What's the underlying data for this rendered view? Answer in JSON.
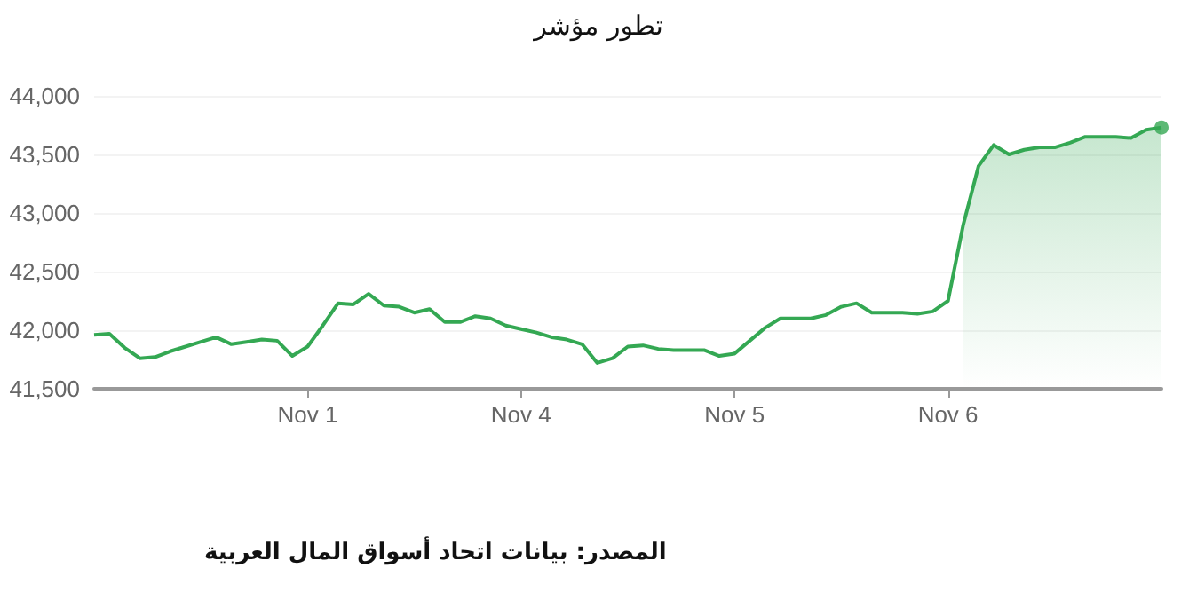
{
  "chart_data": {
    "type": "line",
    "title": "تطور مؤشر",
    "categories": [
      null,
      null,
      null,
      null,
      null,
      null,
      null,
      null,
      null,
      null,
      null,
      null,
      null,
      null,
      "Nov 1",
      null,
      null,
      null,
      null,
      null,
      null,
      null,
      null,
      null,
      null,
      null,
      null,
      null,
      "Nov 4",
      null,
      null,
      null,
      null,
      null,
      null,
      null,
      null,
      null,
      null,
      null,
      null,
      null,
      "Nov 5",
      null,
      null,
      null,
      null,
      null,
      null,
      null,
      null,
      null,
      null,
      null,
      null,
      null,
      "Nov 6",
      null,
      null,
      null,
      null,
      null,
      null,
      null,
      null,
      null,
      null,
      null,
      null,
      null,
      null
    ],
    "series": [
      {
        "color": "#34a853",
        "values": [
          41960,
          41970,
          41850,
          41760,
          41770,
          41820,
          41860,
          41900,
          41940,
          41880,
          41900,
          41920,
          41910,
          41780,
          41860,
          42040,
          42230,
          42220,
          42310,
          42210,
          42200,
          42150,
          42180,
          42070,
          42070,
          42120,
          42100,
          42040,
          42010,
          41980,
          41940,
          41920,
          41880,
          41720,
          41760,
          41860,
          41870,
          41840,
          41830,
          41830,
          41830,
          41780,
          41800,
          41910,
          42020,
          42100,
          42100,
          42100,
          42130,
          42200,
          42230,
          42150,
          42150,
          42150,
          42140,
          42160,
          42250,
          42900,
          43400,
          43580,
          43500,
          43540,
          43560,
          43560,
          43600,
          43650,
          43650,
          43650,
          43640,
          43710,
          43730
        ]
      },
      {
        "type": "area",
        "color": "#34a853",
        "values": [
          null,
          null,
          null,
          null,
          null,
          null,
          null,
          null,
          null,
          null,
          null,
          null,
          null,
          null,
          null,
          null,
          null,
          null,
          null,
          null,
          null,
          null,
          null,
          null,
          null,
          null,
          null,
          null,
          null,
          null,
          null,
          null,
          null,
          null,
          null,
          null,
          null,
          null,
          null,
          null,
          null,
          null,
          null,
          null,
          null,
          null,
          null,
          null,
          null,
          null,
          null,
          null,
          null,
          null,
          null,
          null,
          null,
          42900,
          43400,
          43580,
          43500,
          43540,
          43560,
          43560,
          43600,
          43650,
          43650,
          43650,
          43640,
          43710,
          43730
        ]
      },
      {
        "type": "scatter",
        "color": "#34a853",
        "values": [
          null,
          null,
          null,
          null,
          null,
          null,
          null,
          null,
          null,
          null,
          null,
          null,
          null,
          null,
          null,
          null,
          null,
          null,
          null,
          null,
          null,
          null,
          null,
          null,
          null,
          null,
          null,
          null,
          null,
          null,
          null,
          null,
          null,
          null,
          null,
          null,
          null,
          null,
          null,
          null,
          null,
          null,
          null,
          null,
          null,
          null,
          null,
          null,
          null,
          null,
          null,
          null,
          null,
          null,
          null,
          null,
          null,
          null,
          null,
          null,
          null,
          null,
          null,
          null,
          null,
          null,
          null,
          null,
          null,
          null,
          43730
        ]
      }
    ],
    "ylim": [
      41500,
      44000
    ],
    "yticks": [
      {
        "value": 41500,
        "label": "41,500"
      },
      {
        "value": 42000,
        "label": "42,000"
      },
      {
        "value": 42500,
        "label": "42,500"
      },
      {
        "value": 43000,
        "label": "43,000"
      },
      {
        "value": 43500,
        "label": "43,500"
      },
      {
        "value": 44000,
        "label": "44,000"
      }
    ],
    "grid": "y",
    "annotations": [
      "المصدر: بيانات اتحاد أسواق المال العربية"
    ]
  }
}
